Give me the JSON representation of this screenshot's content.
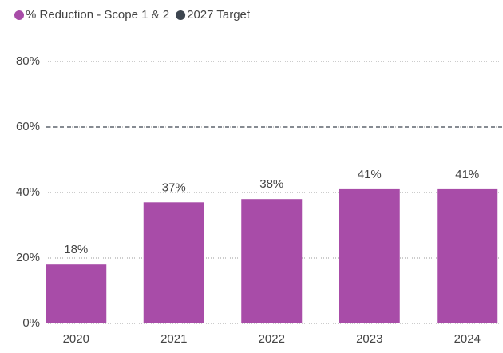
{
  "chart_data": {
    "type": "bar",
    "categories": [
      "2020",
      "2021",
      "2022",
      "2023",
      "2024"
    ],
    "series": [
      {
        "name": "% Reduction - Scope 1 & 2",
        "color": "#a84ca8",
        "values": [
          18,
          37,
          38,
          41,
          41
        ],
        "value_labels": [
          "18%",
          "37%",
          "38%",
          "41%",
          "41%"
        ]
      }
    ],
    "target": {
      "name": "2027 Target",
      "color": "#3d4650",
      "value": 60
    },
    "ylim": [
      0,
      80
    ],
    "yticks": [
      {
        "value": 0,
        "label": "0%"
      },
      {
        "value": 20,
        "label": "20%"
      },
      {
        "value": 40,
        "label": "40%"
      },
      {
        "value": 60,
        "label": "60%"
      },
      {
        "value": 80,
        "label": "80%"
      }
    ],
    "grid": true
  }
}
